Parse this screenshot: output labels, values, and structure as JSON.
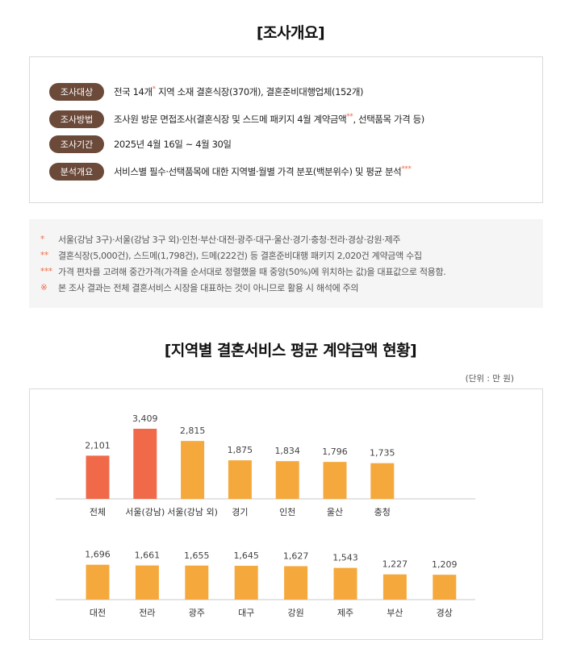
{
  "overview": {
    "title": "[조사개요]",
    "rows": [
      {
        "label": "조사대상",
        "text_a": "전국 14개",
        "star": "*",
        "text_b": " 지역 소재 결혼식장(370개), 결혼준비대행업체(152개)"
      },
      {
        "label": "조사방법",
        "text_a": "조사원 방문 면접조사(결혼식장 및 스드메 패키지 4월 계약금액",
        "star": "**",
        "text_b": ", 선택품목 가격 등)"
      },
      {
        "label": "조사기간",
        "text_a": "2025년 4월 16일 ~ 4월 30일",
        "star": "",
        "text_b": ""
      },
      {
        "label": "분석개요",
        "text_a": "서비스별 필수·선택품목에 대한 지역별·월별 가격 분포(백분위수) 및 평균 분석",
        "star": "***",
        "text_b": ""
      }
    ]
  },
  "notes": [
    {
      "mark": "*",
      "text": "서울(강남 3구)·서울(강남 3구 외)·인천·부산·대전·광주·대구·울산·경기·충청·전라·경상·강원·제주"
    },
    {
      "mark": "**",
      "text": "결혼식장(5,000건), 스드메(1,798건), 드메(222건) 등 결혼준비대행 패키지 2,020건 계약금액 수집"
    },
    {
      "mark": "***",
      "text": "가격 편차를 고려해 중간가격(가격을 순서대로 정렬했을 때 중앙(50%)에 위치하는 값)을 대표값으로 적용함."
    },
    {
      "mark": "※",
      "text": "본 조사 결과는 전체 결혼서비스 시장을 대표하는 것이 아니므로 활용 시 해석에 주의"
    }
  ],
  "chart_title": "[지역별 결혼서비스 평균 계약금액 현황]",
  "unit_label": "(단위 : 만 원)",
  "colors": {
    "highlight": "#f06a4a",
    "normal": "#f5a93c",
    "axis": "#c8c8c8",
    "badge": "#6b4a3a"
  },
  "chart_data": {
    "type": "bar",
    "title": "[지역별 결혼서비스 평균 계약금액 현황]",
    "unit": "(단위 : 만 원)",
    "categories": [
      "전체",
      "서울(강남)",
      "서울(강남 외)",
      "경기",
      "인천",
      "울산",
      "충청",
      "대전",
      "전라",
      "광주",
      "대구",
      "강원",
      "제주",
      "부산",
      "경상"
    ],
    "values": [
      2101,
      3409,
      2815,
      1875,
      1834,
      1796,
      1735,
      1696,
      1661,
      1655,
      1645,
      1627,
      1543,
      1227,
      1209
    ],
    "value_labels": [
      "2,101",
      "3,409",
      "2,815",
      "1,875",
      "1,834",
      "1,796",
      "1,735",
      "1,696",
      "1,661",
      "1,655",
      "1,645",
      "1,627",
      "1,543",
      "1,227",
      "1,209"
    ],
    "highlight": [
      true,
      true,
      false,
      false,
      false,
      false,
      false,
      false,
      false,
      false,
      false,
      false,
      false,
      false,
      false
    ],
    "rows": [
      [
        0,
        1,
        2,
        3,
        4,
        5,
        6
      ],
      [
        7,
        8,
        9,
        10,
        11,
        12,
        13,
        14
      ]
    ]
  }
}
